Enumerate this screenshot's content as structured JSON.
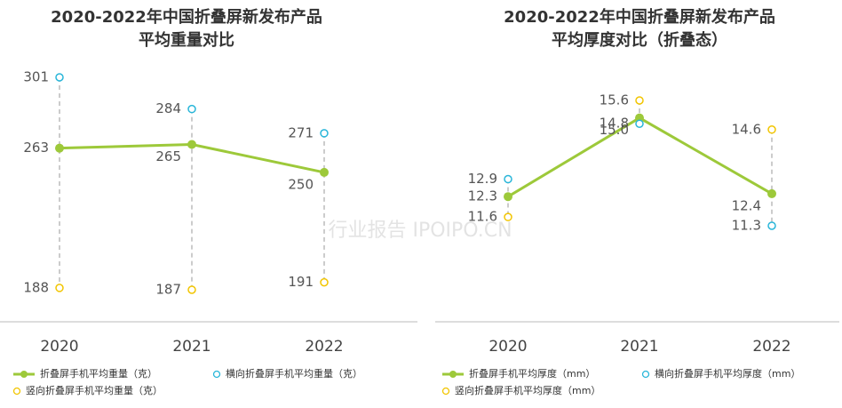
{
  "chart_data": [
    {
      "type": "line",
      "title": [
        "2020-2022年中国折叠屏新发布产品",
        "平均重量对比"
      ],
      "categories": [
        "2020",
        "2021",
        "2022"
      ],
      "series": [
        {
          "name": "折叠屏手机平均重量（克）",
          "color": "#9dc93a",
          "style": "line",
          "values": [
            263,
            265,
            250
          ]
        },
        {
          "name": "横向折叠屏手机平均重量（克）",
          "color": "#29b6d9",
          "style": "marker",
          "values": [
            301,
            284,
            271
          ]
        },
        {
          "name": "竖向折叠屏手机平均重量（克）",
          "color": "#f2c500",
          "style": "marker",
          "values": [
            188,
            187,
            191
          ]
        }
      ]
    },
    {
      "type": "line",
      "title": [
        "2020-2022年中国折叠屏新发布产品",
        "平均厚度对比（折叠态）"
      ],
      "categories": [
        "2020",
        "2021",
        "2022"
      ],
      "series": [
        {
          "name": "折叠屏手机平均厚度（mm）",
          "color": "#9dc93a",
          "style": "line",
          "values": [
            12.3,
            15.0,
            12.4
          ],
          "value_labels": [
            "12.3",
            "15.0",
            "12.4"
          ]
        },
        {
          "name": "横向折叠屏手机平均厚度（mm）",
          "color": "#29b6d9",
          "style": "marker",
          "values": [
            12.9,
            14.8,
            11.3
          ]
        },
        {
          "name": "竖向折叠屏手机平均厚度（mm）",
          "color": "#f2c500",
          "style": "marker",
          "values": [
            11.6,
            15.6,
            14.6
          ]
        }
      ]
    }
  ],
  "watermark": "行业报告 IPOIPO.CN"
}
